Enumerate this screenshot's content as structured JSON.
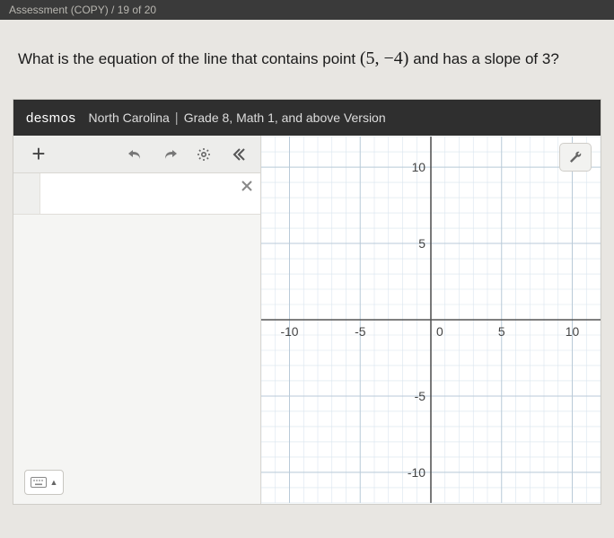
{
  "topbar": {
    "text": "Assessment (COPY)  /  19 of 20"
  },
  "question": {
    "prefix": "What is the equation of the line that contains point ",
    "point": "(5, −4)",
    "suffix": " and has a slope of 3?"
  },
  "desmos": {
    "brand": "desmos",
    "region": "North Carolina",
    "version": "Grade 8, Math 1, and above Version"
  },
  "toolbar": {
    "add": "+",
    "undo_icon": "undo",
    "redo_icon": "redo",
    "settings_icon": "gear",
    "collapse_icon": "collapse"
  },
  "graph": {
    "xlim": [
      -12,
      12
    ],
    "ylim": [
      -12,
      12
    ],
    "xticks": [
      -10,
      -5,
      0,
      5,
      10
    ],
    "yticks": [
      -10,
      -5,
      5,
      10
    ],
    "minor_step": 1,
    "grid_color": "#d8e4ee",
    "major_grid_color": "#b9cad8",
    "axis_color": "#555555",
    "label_color": "#444444",
    "background": "#ffffff",
    "label_fontsize": 14
  },
  "colors": {
    "header_bg": "#2f2f2f",
    "panel_bg": "#f5f5f3",
    "wrench_bg": "#f2f2f0"
  }
}
